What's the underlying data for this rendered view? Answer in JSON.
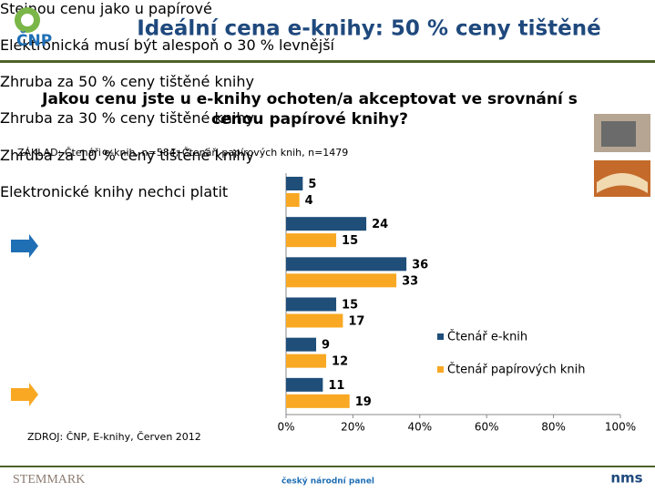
{
  "slide_title": "Ideální cena e-knihy: 50 % ceny tištěné",
  "logo": "ČNP",
  "basis": "ZÁKLAD: Čtenáři e-knih, n=584; Čtenáři papírových knih, n=1479",
  "source": "ZDROJ: ČNP, E-knihy, Červen 2012",
  "footer_center": "český národní panel",
  "footer_left": "STEMMARK",
  "footer_right": "nms",
  "chart_data": {
    "type": "hbar",
    "title": "Jakou cenu jste u e-knihy ochoten/a akceptovat ve srovnání s cenou papírové knihy?",
    "categories": [
      "Stejnou cenu jako u papírové",
      "Elektronická musí být alespoň o 30 % levnější",
      "Zhruba za 50 % ceny tištěné knihy",
      "Zhruba za 30 % ceny tištěné knihy",
      "Zhruba za 10 % ceny tištěné knihy",
      "Elektronické knihy nechci platit"
    ],
    "series": [
      {
        "name": "Čtenář e-knih",
        "color": "#1f4e79",
        "values": [
          5,
          24,
          36,
          15,
          9,
          11
        ]
      },
      {
        "name": "Čtenář papírových knih",
        "color": "#f9a823",
        "values": [
          4,
          15,
          33,
          17,
          12,
          19
        ]
      }
    ],
    "xlim": [
      0,
      100
    ],
    "xticks": [
      {
        "value": 0,
        "label": "0%"
      },
      {
        "value": 20,
        "label": "20%"
      },
      {
        "value": 40,
        "label": "40%"
      },
      {
        "value": 60,
        "label": "60%"
      },
      {
        "value": 80,
        "label": "80%"
      },
      {
        "value": 100,
        "label": "100%"
      }
    ],
    "legend": "right"
  }
}
